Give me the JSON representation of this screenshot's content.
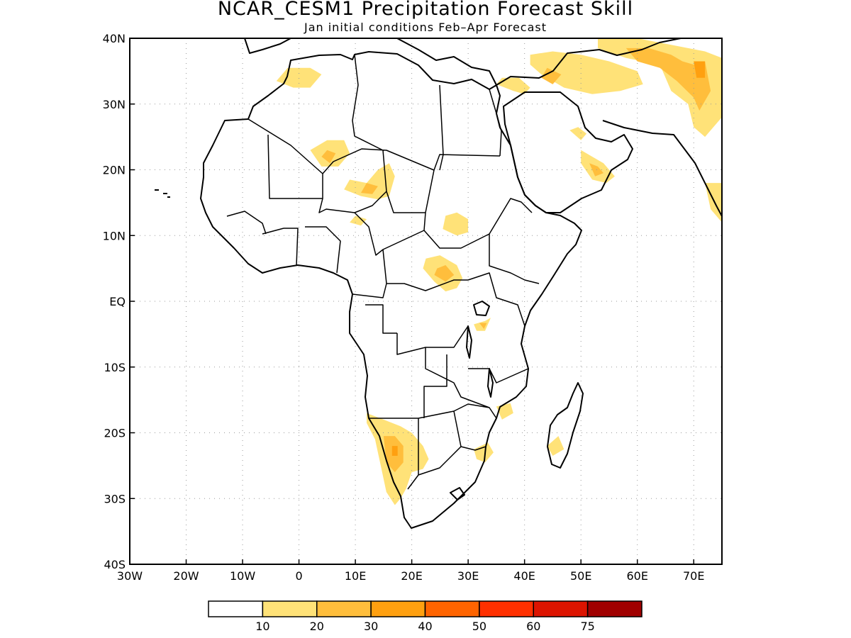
{
  "title": "NCAR_CESM1 Precipitation Forecast Skill",
  "subtitle": "Jan initial conditions  Feb–Apr Forecast",
  "map": {
    "lon_range": [
      -30,
      75
    ],
    "lat_range": [
      -40,
      40
    ],
    "grid_dotted": true,
    "lon_ticks": [
      {
        "value": -30,
        "label": "30W"
      },
      {
        "value": -20,
        "label": "20W"
      },
      {
        "value": -10,
        "label": "10W"
      },
      {
        "value": 0,
        "label": "0"
      },
      {
        "value": 10,
        "label": "10E"
      },
      {
        "value": 20,
        "label": "20E"
      },
      {
        "value": 30,
        "label": "30E"
      },
      {
        "value": 40,
        "label": "40E"
      },
      {
        "value": 50,
        "label": "50E"
      },
      {
        "value": 60,
        "label": "60E"
      },
      {
        "value": 70,
        "label": "70E"
      }
    ],
    "lat_ticks": [
      {
        "value": 40,
        "label": "40N"
      },
      {
        "value": 30,
        "label": "30N"
      },
      {
        "value": 20,
        "label": "20N"
      },
      {
        "value": 10,
        "label": "10N"
      },
      {
        "value": 0,
        "label": "EQ"
      },
      {
        "value": -10,
        "label": "10S"
      },
      {
        "value": -20,
        "label": "20S"
      },
      {
        "value": -30,
        "label": "30S"
      },
      {
        "value": -40,
        "label": "40S"
      }
    ]
  },
  "colorbar": {
    "colors": [
      "#ffffff",
      "#ffe278",
      "#ffbe3c",
      "#ffa010",
      "#ff6400",
      "#ff3000",
      "#dc1400",
      "#a00000"
    ],
    "labels": [
      "10",
      "20",
      "30",
      "40",
      "50",
      "60",
      "75"
    ]
  },
  "skill_regions": [
    {
      "level": 1,
      "points": [
        [
          -4,
          33.5
        ],
        [
          -1,
          32.5
        ],
        [
          2,
          32.5
        ],
        [
          4,
          34.5
        ],
        [
          2,
          35.5
        ],
        [
          -2,
          35.5
        ]
      ]
    },
    {
      "level": 1,
      "points": [
        [
          2,
          23
        ],
        [
          4,
          20.5
        ],
        [
          7,
          20.5
        ],
        [
          9,
          22.5
        ],
        [
          8,
          24.5
        ],
        [
          5,
          24.5
        ]
      ]
    },
    {
      "level": 2,
      "points": [
        [
          4,
          22
        ],
        [
          5.5,
          21
        ],
        [
          6.5,
          22.5
        ],
        [
          5,
          23
        ]
      ]
    },
    {
      "level": 1,
      "points": [
        [
          8,
          17
        ],
        [
          11,
          16
        ],
        [
          14,
          15.5
        ],
        [
          16,
          16
        ],
        [
          17,
          19
        ],
        [
          16,
          21
        ],
        [
          14,
          20
        ],
        [
          12,
          18
        ],
        [
          9,
          18.5
        ]
      ]
    },
    {
      "level": 2,
      "points": [
        [
          11,
          16.5
        ],
        [
          13,
          16.3
        ],
        [
          14,
          17.5
        ],
        [
          12,
          18
        ]
      ]
    },
    {
      "level": 1,
      "points": [
        [
          9,
          12
        ],
        [
          11,
          11.5
        ],
        [
          12,
          12.5
        ],
        [
          10,
          13
        ]
      ]
    },
    {
      "level": 1,
      "points": [
        [
          25.5,
          11
        ],
        [
          28,
          10
        ],
        [
          30,
          10.5
        ],
        [
          30,
          12.5
        ],
        [
          28,
          13.5
        ],
        [
          26,
          13
        ]
      ]
    },
    {
      "level": 1,
      "points": [
        [
          22,
          5
        ],
        [
          24,
          3
        ],
        [
          26,
          1.5
        ],
        [
          28,
          2
        ],
        [
          29,
          3.5
        ],
        [
          28,
          5.5
        ],
        [
          25,
          7
        ],
        [
          22.5,
          6.5
        ]
      ]
    },
    {
      "level": 2,
      "points": [
        [
          24,
          4
        ],
        [
          26,
          3
        ],
        [
          27.5,
          4
        ],
        [
          26,
          5.5
        ],
        [
          24.5,
          5
        ]
      ]
    },
    {
      "level": 1,
      "points": [
        [
          31,
          -3.5
        ],
        [
          33,
          -3
        ],
        [
          34,
          -2.5
        ],
        [
          33,
          -4.5
        ],
        [
          31.5,
          -4.5
        ]
      ]
    },
    {
      "level": 2,
      "points": [
        [
          32,
          -3.3
        ],
        [
          33.3,
          -3.3
        ],
        [
          32.8,
          -4.2
        ]
      ]
    },
    {
      "level": 1,
      "points": [
        [
          41,
          37.5
        ],
        [
          45,
          38
        ],
        [
          50,
          37.5
        ],
        [
          55,
          36.5
        ],
        [
          60,
          35
        ],
        [
          61,
          33
        ],
        [
          57,
          32
        ],
        [
          52,
          31.5
        ],
        [
          47,
          32.5
        ],
        [
          43,
          34.5
        ],
        [
          41,
          36
        ]
      ]
    },
    {
      "level": 2,
      "points": [
        [
          43,
          34
        ],
        [
          45,
          33
        ],
        [
          46.5,
          34.5
        ],
        [
          44,
          35.5
        ]
      ]
    },
    {
      "level": 1,
      "points": [
        [
          53,
          40
        ],
        [
          60,
          40
        ],
        [
          66,
          39
        ],
        [
          72,
          38
        ],
        [
          75,
          37
        ],
        [
          75,
          28
        ],
        [
          72,
          25
        ],
        [
          70,
          26.5
        ],
        [
          69,
          30
        ],
        [
          66,
          32
        ],
        [
          64,
          36
        ],
        [
          58,
          37
        ],
        [
          53,
          38.5
        ]
      ]
    },
    {
      "level": 2,
      "points": [
        [
          58,
          38.5
        ],
        [
          62,
          38.5
        ],
        [
          66,
          37.5
        ],
        [
          68,
          36.5
        ],
        [
          70,
          36
        ],
        [
          72,
          36.5
        ],
        [
          73,
          32
        ],
        [
          71,
          29
        ],
        [
          70,
          31
        ],
        [
          67,
          33.5
        ],
        [
          64,
          35.5
        ],
        [
          60,
          36.5
        ]
      ]
    },
    {
      "level": 3,
      "points": [
        [
          70,
          36.5
        ],
        [
          72,
          36.5
        ],
        [
          72,
          34
        ],
        [
          70.5,
          34
        ]
      ]
    },
    {
      "level": 1,
      "points": [
        [
          35,
          33
        ],
        [
          38,
          32
        ],
        [
          40,
          31.5
        ],
        [
          41,
          32.5
        ],
        [
          39,
          34
        ],
        [
          36,
          34
        ]
      ]
    },
    {
      "level": 1,
      "points": [
        [
          50,
          23
        ],
        [
          52,
          22
        ],
        [
          54,
          21
        ],
        [
          56,
          19
        ],
        [
          54.5,
          18
        ],
        [
          52,
          18.5
        ],
        [
          50,
          21
        ]
      ]
    },
    {
      "level": 2,
      "points": [
        [
          51.5,
          21
        ],
        [
          53,
          20.5
        ],
        [
          54,
          19.5
        ],
        [
          52.5,
          19
        ]
      ]
    },
    {
      "level": 1,
      "points": [
        [
          48,
          26
        ],
        [
          50,
          24.5
        ],
        [
          51,
          25.5
        ],
        [
          49.5,
          26.5
        ]
      ]
    },
    {
      "level": 1,
      "points": [
        [
          72,
          18
        ],
        [
          75,
          18
        ],
        [
          75,
          12
        ],
        [
          73,
          14
        ]
      ]
    },
    {
      "level": 1,
      "points": [
        [
          12,
          -17
        ],
        [
          15,
          -18
        ],
        [
          18,
          -19
        ],
        [
          20,
          -20
        ],
        [
          22,
          -22
        ],
        [
          23,
          -24
        ],
        [
          22,
          -25.5
        ],
        [
          20,
          -26
        ],
        [
          19,
          -28.5
        ],
        [
          18,
          -30
        ],
        [
          17,
          -31
        ],
        [
          15.5,
          -29
        ],
        [
          14.5,
          -25
        ],
        [
          13.5,
          -21
        ],
        [
          12,
          -18.5
        ]
      ]
    },
    {
      "level": 2,
      "points": [
        [
          15,
          -20.5
        ],
        [
          17,
          -20.5
        ],
        [
          18.5,
          -22
        ],
        [
          18.5,
          -24.5
        ],
        [
          17,
          -26
        ],
        [
          15.5,
          -24.5
        ]
      ]
    },
    {
      "level": 3,
      "points": [
        [
          16.5,
          -22
        ],
        [
          17.5,
          -22
        ],
        [
          17.5,
          -23.5
        ],
        [
          16.5,
          -23.5
        ]
      ]
    },
    {
      "level": 1,
      "points": [
        [
          31,
          -22.5
        ],
        [
          33.5,
          -21.5
        ],
        [
          34.5,
          -23
        ],
        [
          33,
          -24.5
        ],
        [
          31.5,
          -24
        ]
      ]
    },
    {
      "level": 1,
      "points": [
        [
          35,
          -16
        ],
        [
          37.5,
          -15.5
        ],
        [
          38,
          -17
        ],
        [
          36,
          -18
        ]
      ]
    },
    {
      "level": 1,
      "points": [
        [
          44,
          -22
        ],
        [
          46,
          -20.5
        ],
        [
          47,
          -22.5
        ],
        [
          45,
          -23.5
        ]
      ]
    }
  ]
}
